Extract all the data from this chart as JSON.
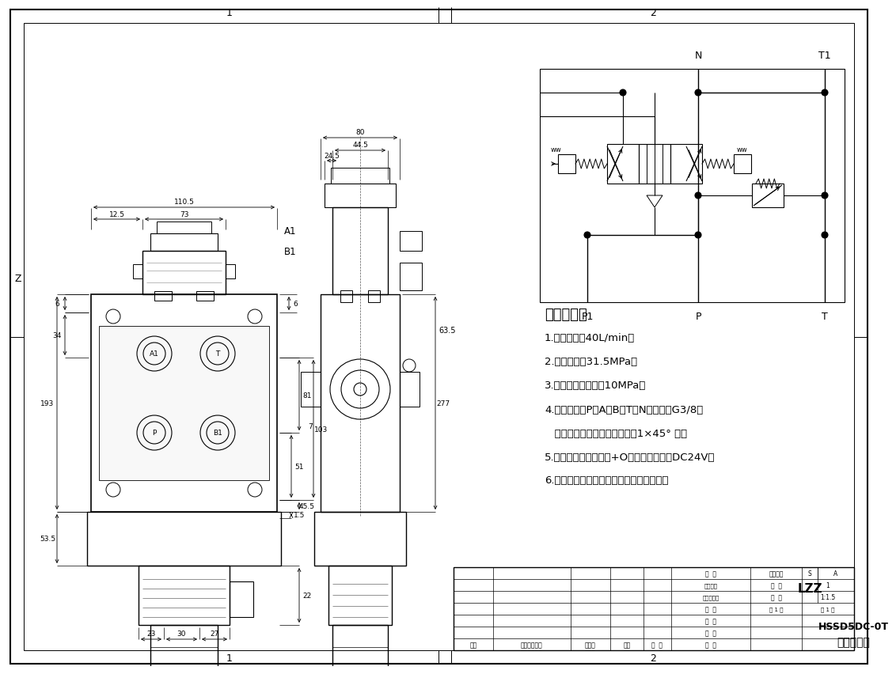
{
  "tech_title": "技术要求：",
  "tech_lines": [
    "1.额定流量：40L/min；",
    "2.额定压力：31.5MPa；",
    "3.安全阀调定压力：10MPa；",
    "4.油口尺寸：P、A、B、T、N油口均为G3/8；",
    "   油口均为平面密封，油孔口借1×45° 角；",
    "5.控制方式：电磁控制+O型阀杆；电压：DC24V；",
    "6.阀体表面甑化处理，安全阀及螺堵镇锌。"
  ],
  "title_model": "HSSD5DC-0T",
  "title_name": "一联多路阀",
  "tb_lzz": "LZZ",
  "tb_tu_hao": "图样标记",
  "tb_S": "S",
  "tb_A": "A",
  "tb_shu_liang": "数  量",
  "tb_bi_li": "比  例",
  "tb_zhang1": "1",
  "tb_scale": "1:1.5",
  "tb_gong1zhang": "共 1 张",
  "tb_di1zhang": "第 1 张",
  "tb_she_ji": "设  计",
  "tb_zhi_tu": "制  图",
  "tb_miao_tu": "描  图",
  "tb_jiao_dui": "校  对",
  "tb_gongyi": "工艺检查",
  "tb_biaozhun": "标准化检查",
  "tb_shen_he": "审  核",
  "tb_beng_ji": "备记",
  "tb_geng_gai": "更改内容依据",
  "tb_geng_gai_ren": "更改人",
  "tb_ri_qi": "日期",
  "tb_pi_zhun": "批  准",
  "label_N": "N",
  "label_T1": "T1",
  "label_P1": "P1",
  "label_P": "P",
  "label_T": "T",
  "label_A1": "A1",
  "label_B1": "B1",
  "dim_110_5": "110.5",
  "dim_73": "73",
  "dim_12_5": "12.5",
  "dim_6": "6",
  "dim_34": "34",
  "dim_193": "193",
  "dim_7": "7",
  "dim_45_5": "45.5",
  "dim_53_5": "53.5",
  "dim_23": "23",
  "dim_30": "30",
  "dim_27": "27",
  "dim_1_5": "1.5",
  "dim_22": "22",
  "dim_81": "81",
  "dim_103": "103",
  "dim_51": "51",
  "dim_80": "80",
  "dim_44_5": "44.5",
  "dim_24_5": "24.5",
  "dim_277": "277",
  "dim_63_5": "63.5",
  "pg_num1": "1",
  "pg_num2": "2"
}
